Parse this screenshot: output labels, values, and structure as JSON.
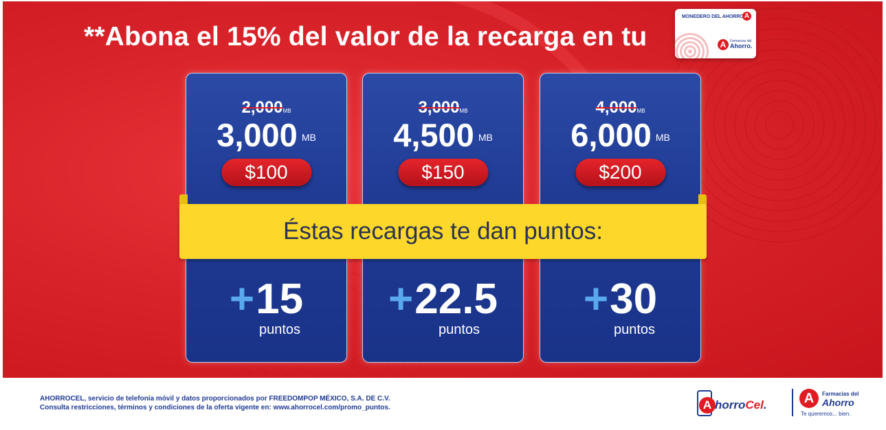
{
  "headline": "**Abona el 15% del valor de la recarga en tu",
  "monedero_card": {
    "title": "MONEDERO DEL AHORRO",
    "brand_small": "Farmacias del",
    "brand_big": "Ahorro."
  },
  "plans": [
    {
      "old_mb": "2,000",
      "new_mb": "3,000",
      "unit": "MB",
      "price": "$100",
      "plus": "+",
      "points": "15",
      "points_label": "puntos"
    },
    {
      "old_mb": "3,000",
      "new_mb": "4,500",
      "unit": "MB",
      "price": "$150",
      "plus": "+",
      "points": "22.5",
      "points_label": "puntos"
    },
    {
      "old_mb": "4,000",
      "new_mb": "6,000",
      "unit": "MB",
      "price": "$200",
      "plus": "+",
      "points": "30",
      "points_label": "puntos"
    }
  ],
  "ribbon_text": "Éstas recargas te dan puntos:",
  "footer": {
    "line1": "AHORROCEL, servicio de telefonía móvil y datos proporcionados por FREEDOMPOP MÉXICO, S.A. DE C.V.",
    "line2": "Consulta restricciones, términos y condiciones de la oferta vigente en: www.ahorrocel.com/promo_puntos."
  },
  "logos": {
    "ahorrocel_a": "A",
    "ahorrocel_name_1": "horro",
    "ahorrocel_name_2": "Cel",
    "farmacias_small": "Farmacias del",
    "farmacias_big": "Ahorro",
    "farmacias_tagline": "Te queremos... bien."
  },
  "colors": {
    "banner_red": "#d9232a",
    "card_blue": "#1f3a93",
    "ribbon_yellow": "#fdd82a",
    "plus_blue": "#5aa9ee",
    "strike_red": "#e11b22"
  }
}
